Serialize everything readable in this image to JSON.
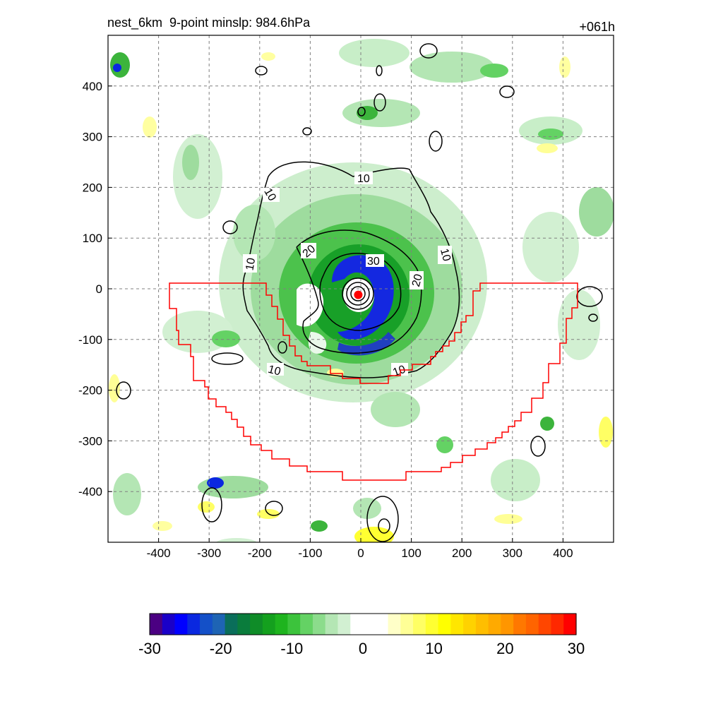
{
  "header": {
    "title_left": "nest_6km  9-point minslp: 984.6hPa",
    "title_right": "+061h"
  },
  "chart_data": {
    "type": "heatmap",
    "title": "nest_6km  9-point minslp: 984.6hPa",
    "subtitle": "+061h",
    "xlabel": "",
    "ylabel": "",
    "xlim": [
      -500,
      500
    ],
    "ylim": [
      -500,
      500
    ],
    "x_ticks": [
      -400,
      -300,
      -200,
      -100,
      0,
      100,
      200,
      300,
      400
    ],
    "y_ticks": [
      400,
      300,
      200,
      100,
      0,
      -100,
      -200,
      -300,
      -400
    ],
    "grid": true,
    "colorbar": {
      "min": -30,
      "max": 30,
      "ticks": [
        -30,
        -20,
        -10,
        0,
        10,
        20,
        30
      ],
      "tick_labels": [
        "-30",
        "-20",
        "-10",
        "0",
        "10",
        "20",
        "30"
      ],
      "colors": [
        "#4b0082",
        "#1a00c8",
        "#0000ff",
        "#0a28e0",
        "#1450c8",
        "#1e64b4",
        "#0a6e5a",
        "#0a7c3c",
        "#0f8c28",
        "#14a01e",
        "#1eb41e",
        "#3cc33c",
        "#64d264",
        "#8cdc8c",
        "#b4e6b4",
        "#d2f0d2",
        "#ffffff",
        "#ffffff",
        "#ffffff",
        "#ffffc8",
        "#ffff96",
        "#ffff64",
        "#ffff32",
        "#ffff00",
        "#ffe600",
        "#ffd200",
        "#ffbe00",
        "#ffaa00",
        "#ff9600",
        "#ff7800",
        "#ff6400",
        "#ff4600",
        "#ff2800",
        "#ff0000"
      ]
    },
    "contour_labels": [
      "10",
      "10",
      "10",
      "10",
      "10",
      "10",
      "20",
      "20",
      "30"
    ],
    "storm_center": {
      "x": -5,
      "y": -12
    },
    "colors": {
      "boundary": "#ff0000",
      "center_marker": "#ff0000",
      "contour": "#000000",
      "grid": "#808080"
    }
  }
}
